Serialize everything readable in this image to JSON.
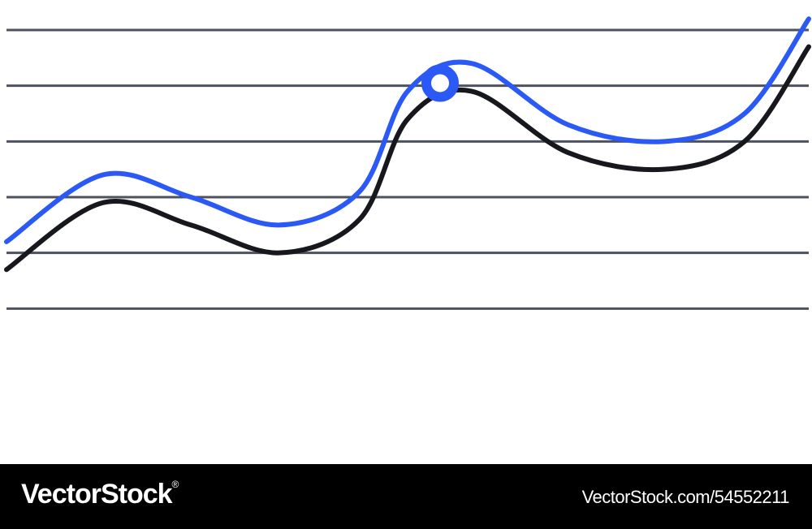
{
  "chart_data": {
    "type": "line",
    "title": "",
    "xlabel": "",
    "ylabel": "",
    "xlim": [
      0,
      10
    ],
    "ylim": [
      0,
      6
    ],
    "grid": true,
    "gridlines_y": [
      1,
      2,
      3,
      4,
      5,
      6
    ],
    "legend": "none",
    "series": [
      {
        "x": [
          0,
          1.2,
          2.3,
          3.4,
          4.4,
          5.0,
          5.8,
          7.0,
          8.2,
          9.2,
          10.0
        ],
        "y": [
          2.2,
          3.4,
          3.0,
          2.5,
          3.1,
          4.9,
          5.4,
          4.3,
          4.0,
          4.5,
          6.2
        ],
        "color": "#2b59f5",
        "marker_at_index": 5
      },
      {
        "x": [
          0,
          1.2,
          2.3,
          3.4,
          4.4,
          5.0,
          5.8,
          7.0,
          8.2,
          9.2,
          10.0
        ],
        "y": [
          1.7,
          2.9,
          2.5,
          2.0,
          2.6,
          4.4,
          4.9,
          3.8,
          3.5,
          4.0,
          5.7
        ],
        "color": "#16181d"
      }
    ],
    "marker": {
      "color": "#2b59f5",
      "fill": "#ffffff"
    },
    "grid_color": "#4d5160"
  },
  "footer": {
    "brand": "VectorStock",
    "brand_mark": "®",
    "image_id": "VectorStock.com/54552211",
    "background": "#000000",
    "text_color": "#ffffff"
  }
}
